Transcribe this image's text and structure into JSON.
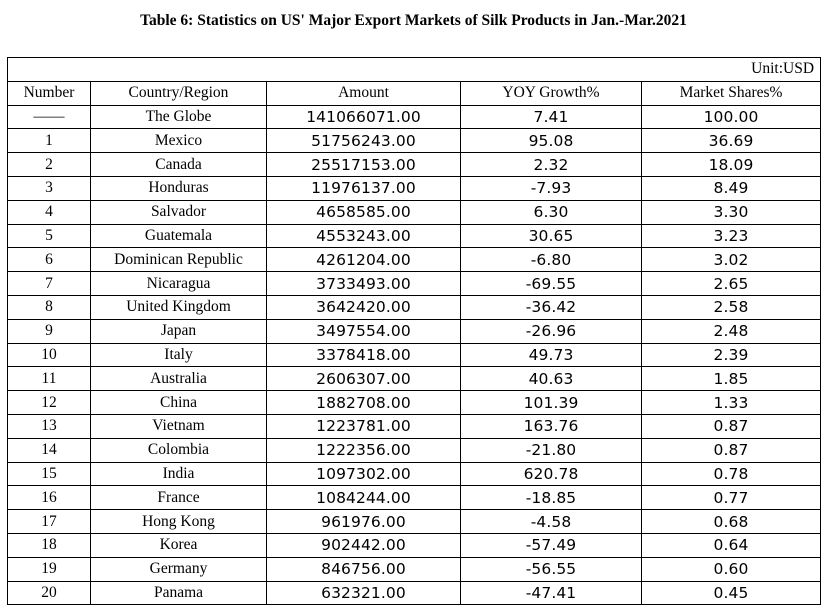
{
  "title": "Table 6: Statistics on US' Major Export Markets of Silk Products in Jan.-Mar.2021",
  "unit": "Unit:USD",
  "headers": {
    "number": "Number",
    "country": "Country/Region",
    "amount": "Amount",
    "yoy": "YOY Growth%",
    "share": "Market Shares%"
  },
  "rows": [
    {
      "number": "——",
      "country": "The Globe",
      "amount": "141066071.00",
      "yoy": "7.41",
      "share": "100.00"
    },
    {
      "number": "1",
      "country": "Mexico",
      "amount": "51756243.00",
      "yoy": "95.08",
      "share": "36.69"
    },
    {
      "number": "2",
      "country": "Canada",
      "amount": "25517153.00",
      "yoy": "2.32",
      "share": "18.09"
    },
    {
      "number": "3",
      "country": "Honduras",
      "amount": "11976137.00",
      "yoy": "-7.93",
      "share": "8.49"
    },
    {
      "number": "4",
      "country": "Salvador",
      "amount": "4658585.00",
      "yoy": "6.30",
      "share": "3.30"
    },
    {
      "number": "5",
      "country": "Guatemala",
      "amount": "4553243.00",
      "yoy": "30.65",
      "share": "3.23"
    },
    {
      "number": "6",
      "country": "Dominican Republic",
      "amount": "4261204.00",
      "yoy": "-6.80",
      "share": "3.02"
    },
    {
      "number": "7",
      "country": "Nicaragua",
      "amount": "3733493.00",
      "yoy": "-69.55",
      "share": "2.65"
    },
    {
      "number": "8",
      "country": "United Kingdom",
      "amount": "3642420.00",
      "yoy": "-36.42",
      "share": "2.58"
    },
    {
      "number": "9",
      "country": "Japan",
      "amount": "3497554.00",
      "yoy": "-26.96",
      "share": "2.48"
    },
    {
      "number": "10",
      "country": "Italy",
      "amount": "3378418.00",
      "yoy": "49.73",
      "share": "2.39"
    },
    {
      "number": "11",
      "country": "Australia",
      "amount": "2606307.00",
      "yoy": "40.63",
      "share": "1.85"
    },
    {
      "number": "12",
      "country": "China",
      "amount": "1882708.00",
      "yoy": "101.39",
      "share": "1.33"
    },
    {
      "number": "13",
      "country": "Vietnam",
      "amount": "1223781.00",
      "yoy": "163.76",
      "share": "0.87"
    },
    {
      "number": "14",
      "country": "Colombia",
      "amount": "1222356.00",
      "yoy": "-21.80",
      "share": "0.87"
    },
    {
      "number": "15",
      "country": "India",
      "amount": "1097302.00",
      "yoy": "620.78",
      "share": "0.78"
    },
    {
      "number": "16",
      "country": "France",
      "amount": "1084244.00",
      "yoy": "-18.85",
      "share": "0.77"
    },
    {
      "number": "17",
      "country": "Hong Kong",
      "amount": "961976.00",
      "yoy": "-4.58",
      "share": "0.68"
    },
    {
      "number": "18",
      "country": "Korea",
      "amount": "902442.00",
      "yoy": "-57.49",
      "share": "0.64"
    },
    {
      "number": "19",
      "country": "Germany",
      "amount": "846756.00",
      "yoy": "-56.55",
      "share": "0.60"
    },
    {
      "number": "20",
      "country": "Panama",
      "amount": "632321.00",
      "yoy": "-47.41",
      "share": "0.45"
    }
  ]
}
